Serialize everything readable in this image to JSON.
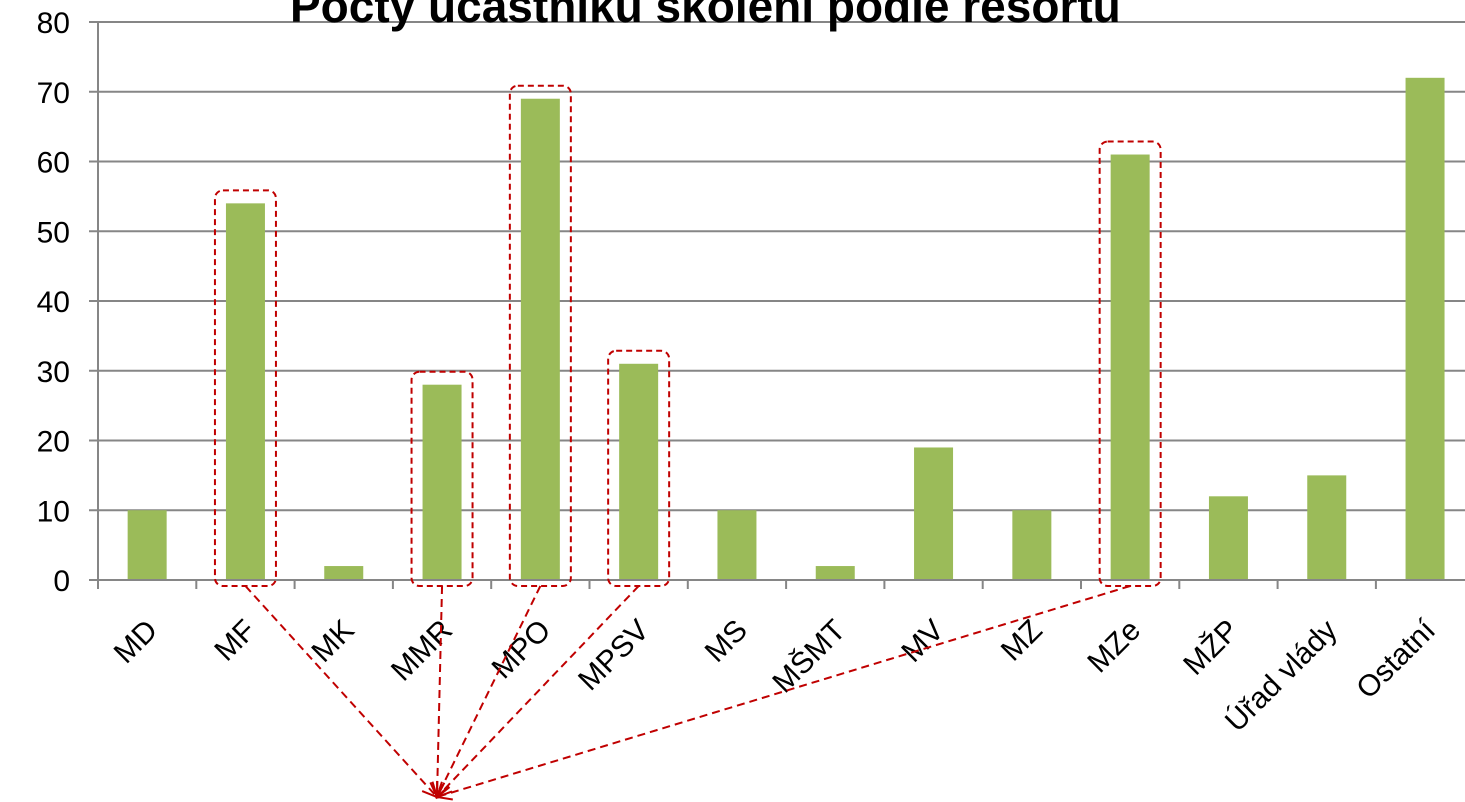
{
  "chart_data": {
    "type": "bar",
    "title": "Počty účastníků školení podle resortů",
    "xlabel": "",
    "ylabel": "",
    "ylim": [
      0,
      80
    ],
    "yticks": [
      0,
      10,
      20,
      30,
      40,
      50,
      60,
      70,
      80
    ],
    "grid": true,
    "categories": [
      "MD",
      "MF",
      "MK",
      "MMR",
      "MPO",
      "MPSV",
      "MS",
      "MŠMT",
      "MV",
      "MZ",
      "MZe",
      "MŽP",
      "Úřad vlády",
      "Ostatní"
    ],
    "values": [
      10,
      54,
      2,
      28,
      69,
      31,
      10,
      2,
      19,
      10,
      61,
      12,
      15,
      72
    ],
    "highlighted": [
      "MF",
      "MMR",
      "MPO",
      "MPSV",
      "MZe"
    ],
    "colors": {
      "bar": "#9bbb59",
      "highlight": "#c00000",
      "grid": "#868686",
      "axis": "#868686"
    }
  }
}
